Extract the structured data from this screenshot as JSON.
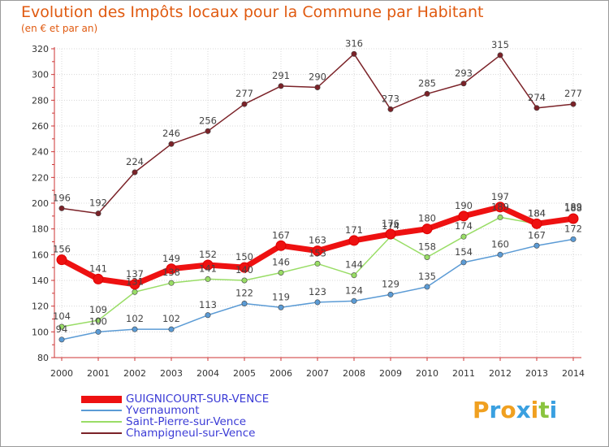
{
  "chart_data": {
    "type": "line",
    "title": "Evolution des Impôts locaux pour la Commune par Habitant",
    "subtitle": "(en € et par an)",
    "xlabel": "",
    "ylabel": "",
    "ylim": [
      80,
      320
    ],
    "yticks": [
      "80",
      "100",
      "120",
      "140",
      "160",
      "180",
      "200",
      "220",
      "240",
      "260",
      "280",
      "300",
      "320"
    ],
    "categories": [
      "2000",
      "2001",
      "2002",
      "2003",
      "2004",
      "2005",
      "2006",
      "2007",
      "2008",
      "2009",
      "2010",
      "2011",
      "2012",
      "2013",
      "2014"
    ],
    "grid": true,
    "legend_position": "bottom-left",
    "series": [
      {
        "name": "Champigneul-sur-Vence",
        "color": "#7b2228",
        "values": [
          196,
          192,
          224,
          246,
          256,
          277,
          291,
          290,
          316,
          273,
          285,
          293,
          315,
          274,
          277
        ],
        "labels": [
          "196",
          "192",
          "224",
          "246",
          "256",
          "277",
          "291",
          "290",
          "316",
          "273",
          "285",
          "293",
          "315",
          "274",
          "277"
        ]
      },
      {
        "name": "Yvernaumont",
        "color": "#5b9bd5",
        "values": [
          94,
          100,
          102,
          102,
          113,
          122,
          119,
          123,
          124,
          129,
          135,
          154,
          160,
          167,
          172
        ],
        "labels": [
          "94",
          "100",
          "102",
          "102",
          "113",
          "122",
          "119",
          "123",
          "124",
          "129",
          "135",
          "154",
          "160",
          "167",
          "172"
        ]
      },
      {
        "name": "Saint-Pierre-sur-Vence",
        "color": "#99dd66",
        "values": [
          104,
          109,
          131,
          138,
          141,
          140,
          146,
          153,
          144,
          174,
          158,
          174,
          189,
          184,
          189
        ],
        "labels": [
          "104",
          "109",
          "131",
          "138",
          "141",
          "140",
          "146",
          "153",
          "144",
          "174",
          "158",
          "174",
          "189",
          "184",
          "189"
        ]
      },
      {
        "name": "GUIGNICOURT-SUR-VENCE",
        "color": "#ee1111",
        "values": [
          156,
          141,
          137,
          149,
          152,
          150,
          167,
          163,
          171,
          176,
          180,
          190,
          197,
          184,
          188
        ],
        "labels": [
          "156",
          "141",
          "137",
          "149",
          "152",
          "150",
          "167",
          "163",
          "171",
          "176",
          "180",
          "190",
          "197",
          "184",
          "188"
        ]
      }
    ]
  },
  "legend": {
    "items": [
      {
        "label": "GUIGNICOURT-SUR-VENCE",
        "color": "#ee1111"
      },
      {
        "label": "Yvernaumont",
        "color": "#5b9bd5"
      },
      {
        "label": "Saint-Pierre-sur-Vence",
        "color": "#99dd66"
      },
      {
        "label": "Champigneul-sur-Vence",
        "color": "#7b2228"
      }
    ]
  },
  "logo": {
    "text": "Proxiti",
    "letters": [
      {
        "ch": "P",
        "color": "#f0a020"
      },
      {
        "ch": "r",
        "color": "#3aa0e0"
      },
      {
        "ch": "o",
        "color": "#f0a020"
      },
      {
        "ch": "x",
        "color": "#3aa0e0"
      },
      {
        "ch": "i",
        "color": "#f0a020"
      },
      {
        "ch": "t",
        "color": "#8ac43f"
      },
      {
        "ch": "i",
        "color": "#3aa0e0"
      }
    ]
  }
}
